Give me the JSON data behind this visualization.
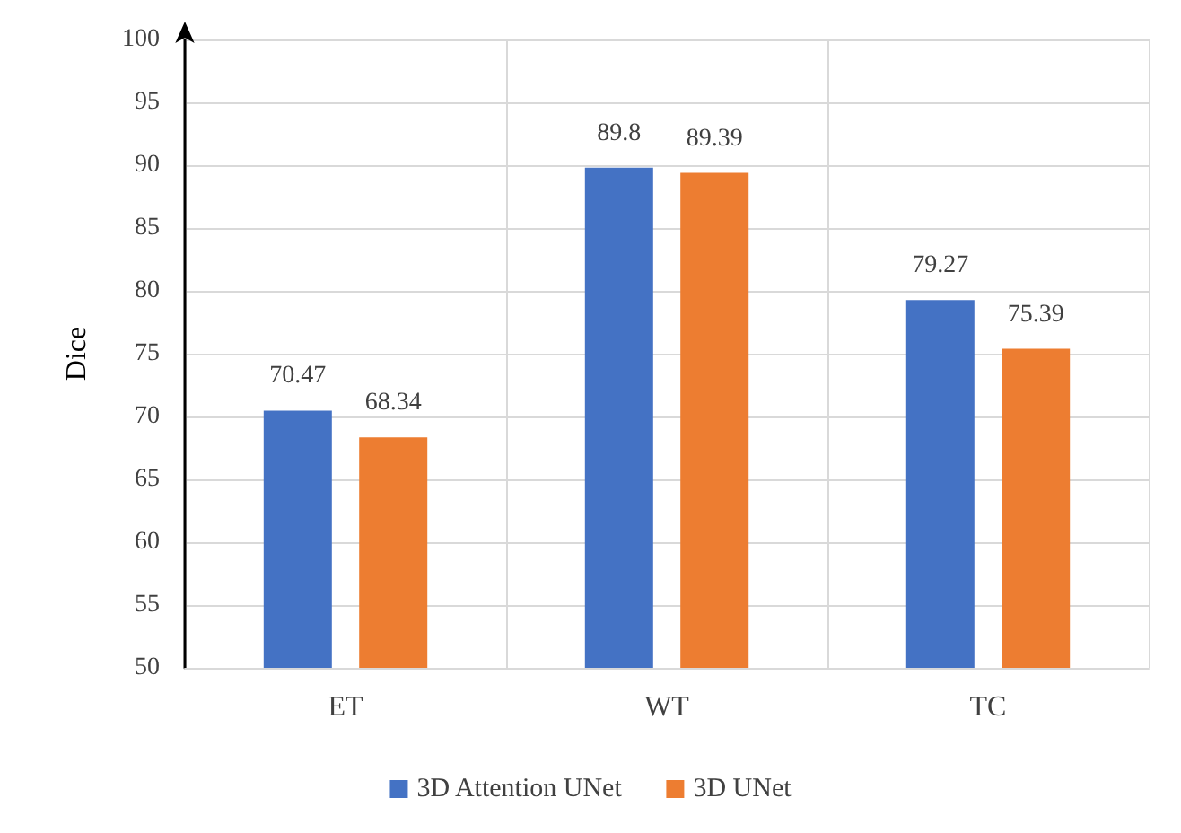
{
  "chart_data": {
    "type": "bar",
    "ylabel": "Dice",
    "categories": [
      "ET",
      "WT",
      "TC"
    ],
    "series": [
      {
        "name": "3D Attention UNet",
        "color": "#4472c4",
        "values": [
          70.47,
          89.8,
          79.27
        ]
      },
      {
        "name": "3D UNet",
        "color": "#ed7d31",
        "values": [
          68.34,
          89.39,
          75.39
        ]
      }
    ],
    "ylim": [
      50,
      100
    ],
    "yticks": [
      50,
      55,
      60,
      65,
      70,
      75,
      80,
      85,
      90,
      95,
      100
    ],
    "grid": true,
    "legend": "bottom",
    "data_labels": true
  }
}
